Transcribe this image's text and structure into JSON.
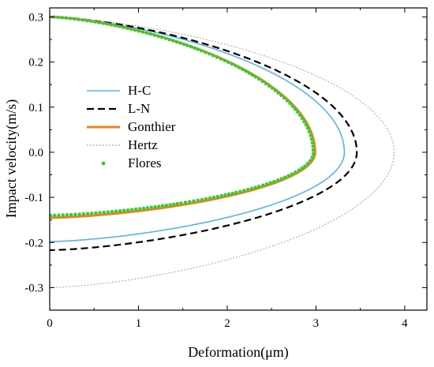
{
  "chart_data": {
    "type": "line",
    "xlabel": "Deformation(μm)",
    "ylabel": "Impact velocity(m/s)",
    "xlim": [
      0,
      4.25
    ],
    "ylim": [
      -0.35,
      0.32
    ],
    "xticks": [
      0,
      1,
      2,
      3,
      4
    ],
    "xtick_labels": [
      "0",
      "1",
      "2",
      "3",
      "4"
    ],
    "yticks": [
      0.3,
      0.2,
      0.1,
      0.0,
      -0.1,
      -0.2,
      -0.3
    ],
    "ytick_labels": [
      "0.3",
      "0.2",
      "0.1",
      "0.0",
      "-0.1",
      "-0.2",
      "-0.3"
    ],
    "minor_xticks": [
      0.5,
      1.5,
      2.5,
      3.5
    ],
    "minor_yticks": [
      0.25,
      0.15,
      0.05,
      -0.05,
      -0.15,
      -0.25
    ],
    "grid": false,
    "legend_position": "upper-left",
    "v0": 0.3,
    "series": [
      {
        "name": "H-C",
        "style": "solid",
        "color": "#5ab4ec",
        "x_max": 3.32,
        "v_final": -0.198,
        "exponent": 1.5
      },
      {
        "name": "L-N",
        "style": "dashed",
        "color": "#000000",
        "x_max": 3.46,
        "v_final": -0.217,
        "exponent": 1.5
      },
      {
        "name": "Gonthier",
        "style": "solid-thick",
        "color": "#f07f1e",
        "x_max": 2.99,
        "v_final": -0.145,
        "exponent": 1.5
      },
      {
        "name": "Hertz",
        "style": "dotted",
        "color": "#9a9a9a",
        "x_max": 3.88,
        "v_final": -0.3,
        "exponent": 1.5
      },
      {
        "name": "Flores",
        "style": "markers",
        "color": "#33cc33",
        "x_max": 2.97,
        "v_final": -0.14,
        "exponent": 1.5
      }
    ]
  }
}
